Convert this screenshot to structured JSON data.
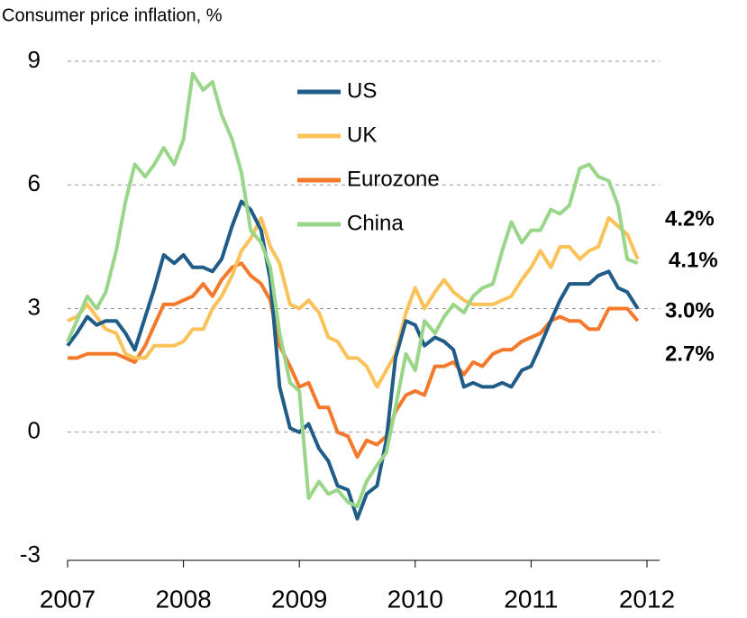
{
  "chart_data": {
    "type": "line",
    "title": "Consumer price inflation, %",
    "x": [
      2007,
      2007.08,
      2007.17,
      2007.25,
      2007.33,
      2007.42,
      2007.5,
      2007.58,
      2007.67,
      2007.75,
      2007.83,
      2007.92,
      2008,
      2008.08,
      2008.17,
      2008.25,
      2008.33,
      2008.42,
      2008.5,
      2008.58,
      2008.67,
      2008.75,
      2008.83,
      2008.92,
      2009,
      2009.08,
      2009.17,
      2009.25,
      2009.33,
      2009.42,
      2009.5,
      2009.58,
      2009.67,
      2009.75,
      2009.83,
      2009.92,
      2010,
      2010.08,
      2010.17,
      2010.25,
      2010.33,
      2010.42,
      2010.5,
      2010.58,
      2010.67,
      2010.75,
      2010.83,
      2010.92,
      2011,
      2011.08,
      2011.17,
      2011.25,
      2011.33,
      2011.42,
      2011.5,
      2011.58,
      2011.67,
      2011.75,
      2011.83,
      2011.92
    ],
    "series": [
      {
        "name": "US",
        "color": "#1f5c87",
        "end_label": "3.0%",
        "label_color": "#1c4a6e",
        "values": [
          2.1,
          2.4,
          2.8,
          2.6,
          2.7,
          2.7,
          2.4,
          2.0,
          2.8,
          3.5,
          4.3,
          4.1,
          4.3,
          4.0,
          4.0,
          3.9,
          4.2,
          5.0,
          5.6,
          5.4,
          4.9,
          3.7,
          1.1,
          0.1,
          0.0,
          0.2,
          -0.4,
          -0.7,
          -1.3,
          -1.4,
          -2.1,
          -1.5,
          -1.3,
          -0.2,
          1.8,
          2.7,
          2.6,
          2.1,
          2.3,
          2.2,
          2.0,
          1.1,
          1.2,
          1.1,
          1.1,
          1.2,
          1.1,
          1.5,
          1.6,
          2.1,
          2.7,
          3.2,
          3.6,
          3.6,
          3.6,
          3.8,
          3.9,
          3.5,
          3.4,
          3.0
        ]
      },
      {
        "name": "UK",
        "color": "#fbc25a",
        "end_label": "4.2%",
        "label_color": "#f7a020",
        "values": [
          2.7,
          2.8,
          3.1,
          2.8,
          2.5,
          2.4,
          1.9,
          1.8,
          1.8,
          2.1,
          2.1,
          2.1,
          2.2,
          2.5,
          2.5,
          3.0,
          3.3,
          3.8,
          4.4,
          4.7,
          5.2,
          4.5,
          4.1,
          3.1,
          3.0,
          3.2,
          2.9,
          2.3,
          2.2,
          1.8,
          1.8,
          1.6,
          1.1,
          1.5,
          1.9,
          2.9,
          3.5,
          3.0,
          3.4,
          3.7,
          3.4,
          3.2,
          3.1,
          3.1,
          3.1,
          3.2,
          3.3,
          3.7,
          4.0,
          4.4,
          4.0,
          4.5,
          4.5,
          4.2,
          4.4,
          4.5,
          5.2,
          5.0,
          4.8,
          4.2
        ]
      },
      {
        "name": "Eurozone",
        "color": "#f5792b",
        "end_label": "2.7%",
        "label_color": "#d9392b",
        "values": [
          1.8,
          1.8,
          1.9,
          1.9,
          1.9,
          1.9,
          1.8,
          1.7,
          2.1,
          2.6,
          3.1,
          3.1,
          3.2,
          3.3,
          3.6,
          3.3,
          3.7,
          4.0,
          4.1,
          3.8,
          3.6,
          3.2,
          2.1,
          1.6,
          1.1,
          1.2,
          0.6,
          0.6,
          0.0,
          -0.1,
          -0.6,
          -0.2,
          -0.3,
          -0.1,
          0.5,
          0.9,
          1.0,
          0.9,
          1.6,
          1.6,
          1.7,
          1.4,
          1.7,
          1.6,
          1.9,
          2.0,
          2.0,
          2.2,
          2.3,
          2.4,
          2.7,
          2.8,
          2.7,
          2.7,
          2.5,
          2.5,
          3.0,
          3.0,
          3.0,
          2.7
        ]
      },
      {
        "name": "China",
        "color": "#9ad68a",
        "end_label": "4.1%",
        "label_color": "#2e9a2e",
        "values": [
          2.2,
          2.7,
          3.3,
          3.0,
          3.4,
          4.4,
          5.6,
          6.5,
          6.2,
          6.5,
          6.9,
          6.5,
          7.1,
          8.7,
          8.3,
          8.5,
          7.7,
          7.1,
          6.3,
          4.9,
          4.6,
          4.0,
          2.4,
          1.2,
          1.0,
          -1.6,
          -1.2,
          -1.5,
          -1.4,
          -1.7,
          -1.8,
          -1.2,
          -0.8,
          -0.5,
          0.6,
          1.9,
          1.5,
          2.7,
          2.4,
          2.8,
          3.1,
          2.9,
          3.3,
          3.5,
          3.6,
          4.4,
          5.1,
          4.6,
          4.9,
          4.9,
          5.4,
          5.3,
          5.5,
          6.4,
          6.5,
          6.2,
          6.1,
          5.5,
          4.2,
          4.1
        ]
      }
    ],
    "xlim": [
      2007,
      2012
    ],
    "xticks": [
      2007,
      2008,
      2009,
      2010,
      2011,
      2012
    ],
    "ylim": [
      -3,
      9
    ],
    "yticks": [
      -3,
      0,
      3,
      6,
      9
    ],
    "grid": true
  }
}
